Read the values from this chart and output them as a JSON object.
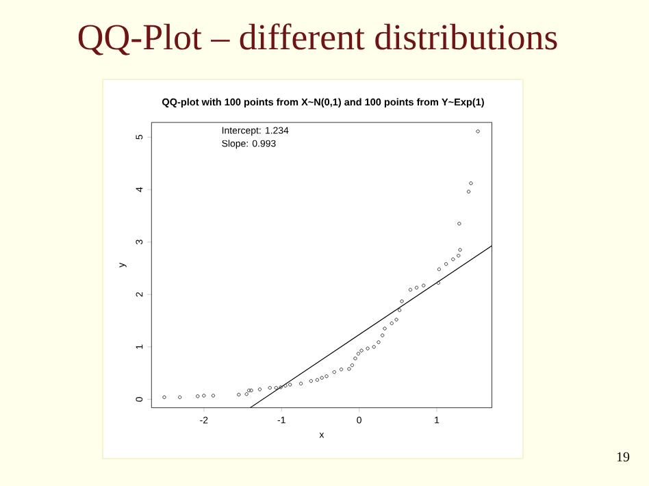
{
  "chart_data": {
    "type": "scatter",
    "title": "QQ-Plot – different distributions",
    "subtitle": "QQ-plot with 100 points from X~N(0,1) and 100 points from  Y~Exp(1)",
    "xlabel": "x",
    "ylabel": "y",
    "annotations": [
      "Intercept: 1.234",
      "Slope: 0.993",
      "19"
    ],
    "xlim": [
      -2.675,
      1.71
    ],
    "ylim": [
      -0.16,
      5.28
    ],
    "xticks": [
      -2,
      -1,
      0,
      1
    ],
    "yticks": [
      0,
      1,
      2,
      3,
      4,
      5
    ],
    "grid": false,
    "series": [
      {
        "marker": "circle",
        "color": "#333333",
        "x": [
          -2.51,
          -2.31,
          -2.08,
          -2.0,
          -1.88,
          -1.55,
          -1.45,
          -1.42,
          -1.39,
          -1.28,
          -1.15,
          -1.07,
          -1.01,
          -0.95,
          -0.89,
          -0.75,
          -0.62,
          -0.54,
          -0.48,
          -0.42,
          -0.32,
          -0.23,
          -0.13,
          -0.09,
          -0.05,
          -0.01,
          0.03,
          0.11,
          0.19,
          0.25,
          0.3,
          0.33,
          0.42,
          0.48,
          0.52,
          0.55,
          0.66,
          0.74,
          0.83,
          1.02,
          1.03,
          1.12,
          1.21,
          1.28,
          1.3,
          1.29,
          1.41,
          1.44,
          1.53
        ],
        "values": [
          0.04,
          0.04,
          0.06,
          0.07,
          0.07,
          0.09,
          0.1,
          0.17,
          0.17,
          0.19,
          0.22,
          0.22,
          0.23,
          0.26,
          0.28,
          0.3,
          0.35,
          0.37,
          0.41,
          0.44,
          0.52,
          0.57,
          0.58,
          0.65,
          0.78,
          0.87,
          0.93,
          0.97,
          1.0,
          1.09,
          1.22,
          1.35,
          1.45,
          1.52,
          1.7,
          1.87,
          2.09,
          2.13,
          2.17,
          2.22,
          2.48,
          2.58,
          2.67,
          2.74,
          2.85,
          3.35,
          3.96,
          4.12,
          5.11
        ]
      },
      {
        "type": "line",
        "color": "#000000",
        "x": [
          -1.404,
          1.71
        ],
        "values": [
          -0.16,
          2.93
        ]
      }
    ]
  }
}
